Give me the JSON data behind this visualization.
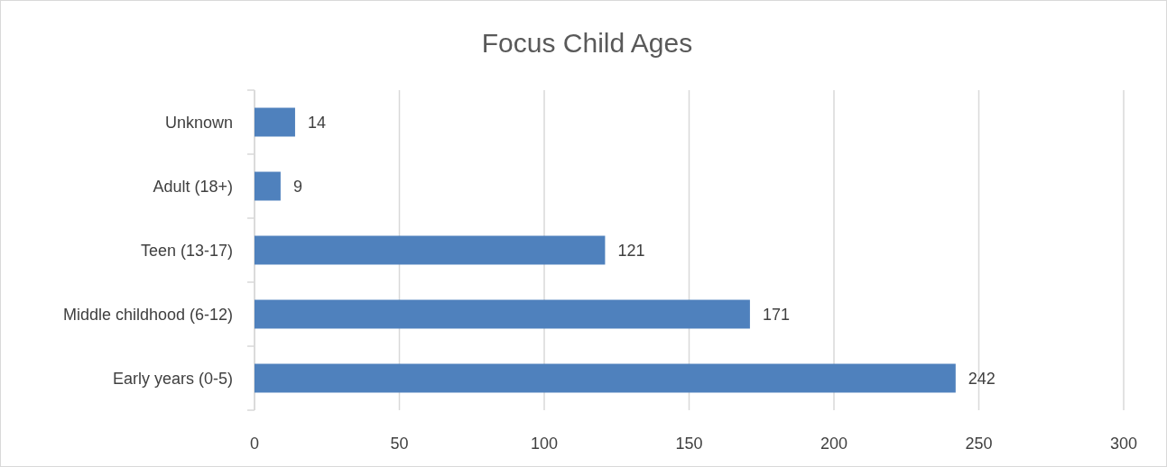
{
  "chart_data": {
    "type": "bar",
    "title": "Focus Child Ages",
    "orientation": "horizontal",
    "categories": [
      "Unknown",
      "Adult (18+)",
      "Teen (13-17)",
      "Middle childhood (6-12)",
      "Early years (0-5)"
    ],
    "values": [
      14,
      9,
      121,
      171,
      242
    ],
    "color": "#4f81bd",
    "xlim": [
      0,
      300
    ],
    "xticks": [
      0,
      50,
      100,
      150,
      200,
      250,
      300
    ],
    "grid": "x",
    "data_labels": true
  }
}
